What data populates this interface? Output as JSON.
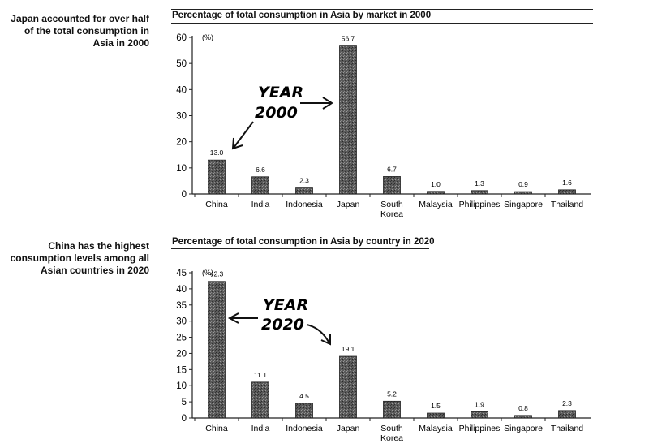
{
  "notes": [
    "Japan accounted for over half of the total consumption in Asia in 2000",
    "China has the highest consumption levels among all Asian countries in 2020"
  ],
  "annotations": {
    "chart1": [
      "YEAR",
      "2000"
    ],
    "chart2": [
      "YEAR",
      "2020"
    ]
  },
  "chart_data": [
    {
      "type": "bar",
      "title": "Percentage of total consumption in Asia by market in 2000",
      "ylabel": "(%)",
      "categories": [
        "China",
        "India",
        "Indonesia",
        "Japan",
        "South Korea",
        "Malaysia",
        "Philippines",
        "Singapore",
        "Thailand"
      ],
      "values": [
        13.0,
        6.6,
        2.3,
        56.7,
        6.7,
        1.0,
        1.3,
        0.9,
        1.6
      ],
      "value_labels": [
        "13.0",
        "6.6",
        "2.3",
        "56.7",
        "6.7",
        "1.0",
        "1.3",
        "0.9",
        "1.6"
      ],
      "ylim": [
        0,
        60
      ],
      "yticks": [
        0,
        10,
        20,
        30,
        40,
        50,
        60
      ],
      "grid": false
    },
    {
      "type": "bar",
      "title": "Percentage of total consumption in Asia by country in 2020",
      "ylabel": "(%)",
      "categories": [
        "China",
        "India",
        "Indonesia",
        "Japan",
        "South Korea",
        "Malaysia",
        "Philippines",
        "Singapore",
        "Thailand"
      ],
      "values": [
        42.3,
        11.1,
        4.5,
        19.1,
        5.2,
        1.5,
        1.9,
        0.8,
        2.3
      ],
      "value_labels": [
        "42.3",
        "11.1",
        "4.5",
        "19.1",
        "5.2",
        "1.5",
        "1.9",
        "0.8",
        "2.3"
      ],
      "ylim": [
        0,
        45
      ],
      "yticks": [
        0,
        5,
        10,
        15,
        20,
        25,
        30,
        35,
        40,
        45
      ],
      "grid": false
    }
  ]
}
